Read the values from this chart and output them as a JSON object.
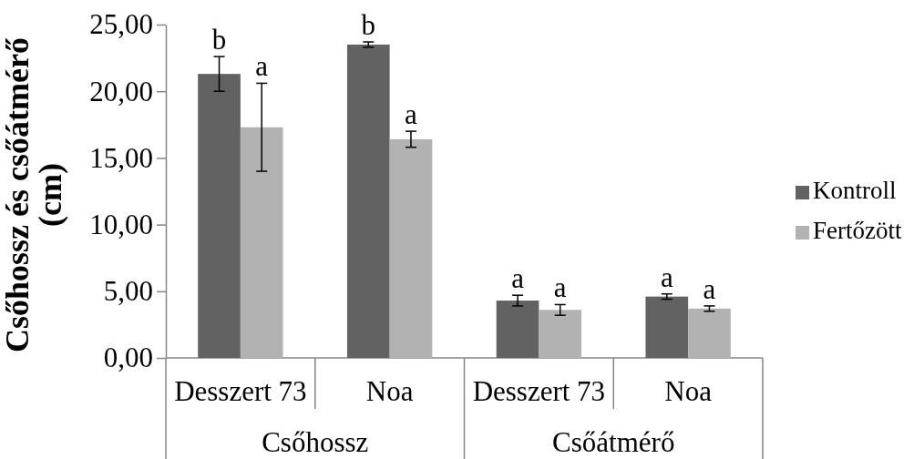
{
  "chart_data": {
    "type": "bar",
    "ylabel": "Csőhossz és csőátmérő (cm)",
    "categories": [
      "Desszert 73",
      "Noa",
      "Desszert 73",
      "Noa"
    ],
    "annotations": [
      "Csőhossz",
      "Csőátmérő"
    ],
    "series": [
      {
        "name": "Kontroll",
        "color": "#626262",
        "values": [
          21.3,
          23.5,
          4.3,
          4.6
        ],
        "errors": [
          1.3,
          0.2,
          0.4,
          0.2
        ],
        "value_labels": [
          "b",
          "b",
          "a",
          "a"
        ]
      },
      {
        "name": "Fertőzött",
        "color": "#b2b2b2",
        "values": [
          17.3,
          16.4,
          3.6,
          3.7
        ],
        "errors": [
          3.3,
          0.6,
          0.4,
          0.2
        ],
        "value_labels": [
          "a",
          "a",
          "a",
          "a"
        ]
      }
    ],
    "ylim": [
      0,
      25
    ],
    "yticks": [
      {
        "value": 0,
        "label": "0,00"
      },
      {
        "value": 5,
        "label": "5,00"
      },
      {
        "value": 10,
        "label": "10,00"
      },
      {
        "value": 15,
        "label": "15,00"
      },
      {
        "value": 20,
        "label": "20,00"
      },
      {
        "value": 25,
        "label": "25,00"
      }
    ],
    "legend": "right"
  }
}
